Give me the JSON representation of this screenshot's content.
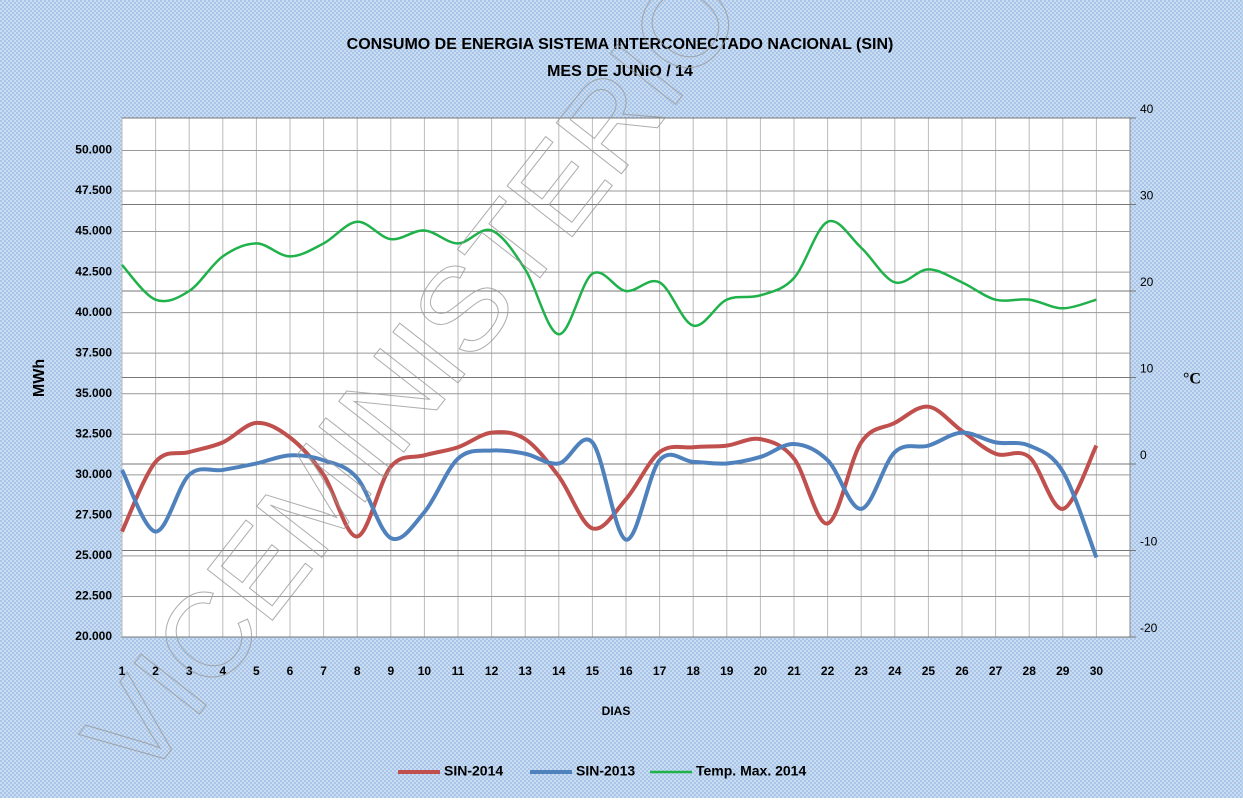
{
  "chart_data": {
    "type": "line",
    "title": "CONSUMO DE ENERGIA SISTEMA INTERCONECTADO NACIONAL (SIN)",
    "subtitle": "MES DE  JUNIO  / 14",
    "watermark": "VICEMINISTERIO",
    "x_label": "DIAS",
    "y_label": "MWh",
    "y2_label": "°C",
    "x": [
      1,
      2,
      3,
      4,
      5,
      6,
      7,
      8,
      9,
      10,
      11,
      12,
      13,
      14,
      15,
      16,
      17,
      18,
      19,
      20,
      21,
      22,
      23,
      24,
      25,
      26,
      27,
      28,
      29,
      30
    ],
    "xlim": [
      1,
      31
    ],
    "xticks": [
      1,
      2,
      3,
      4,
      5,
      6,
      7,
      8,
      9,
      10,
      11,
      12,
      13,
      14,
      15,
      16,
      17,
      18,
      19,
      20,
      21,
      22,
      23,
      24,
      25,
      26,
      27,
      28,
      29,
      30
    ],
    "ylim": [
      20000,
      52000
    ],
    "yticks": [
      {
        "value": 20000,
        "label": "20.000"
      },
      {
        "value": 22500,
        "label": "22.500"
      },
      {
        "value": 25000,
        "label": "25.000"
      },
      {
        "value": 27500,
        "label": "27.500"
      },
      {
        "value": 30000,
        "label": "30.000"
      },
      {
        "value": 32500,
        "label": "32.500"
      },
      {
        "value": 35000,
        "label": "35.000"
      },
      {
        "value": 37500,
        "label": "37.500"
      },
      {
        "value": 40000,
        "label": "40.000"
      },
      {
        "value": 42500,
        "label": "42.500"
      },
      {
        "value": 45000,
        "label": "45.000"
      },
      {
        "value": 47500,
        "label": "47.500"
      },
      {
        "value": 50000,
        "label": "50.000"
      }
    ],
    "y2lim": [
      -20,
      40
    ],
    "y2ticks": [
      -20,
      -10,
      0,
      10,
      20,
      30,
      40
    ],
    "grid": true,
    "legend": "bottom",
    "series": [
      {
        "name": "SIN-2014",
        "color": "#c0504d",
        "values": [
          26500,
          30800,
          31400,
          32000,
          33200,
          32300,
          30000,
          26200,
          30500,
          31200,
          31700,
          32600,
          32200,
          29900,
          26700,
          28500,
          31400,
          31700,
          31800,
          32200,
          31000,
          27000,
          32000,
          33200,
          34200,
          32700,
          31300,
          31100,
          27900,
          31800
        ]
      },
      {
        "name": "SIN-2013",
        "color": "#4f81bd",
        "values": [
          30300,
          26500,
          30000,
          30300,
          30700,
          31200,
          30900,
          29800,
          26100,
          27700,
          31000,
          31500,
          31300,
          30700,
          32000,
          26000,
          30900,
          30800,
          30700,
          31100,
          31900,
          30900,
          27900,
          31400,
          31800,
          32600,
          32000,
          31800,
          30200,
          24900
        ]
      },
      {
        "name": "Temp. Max. 2014",
        "color": "#1fb14a",
        "axis": "y2",
        "values": [
          23,
          19,
          20,
          24,
          25.5,
          24,
          25.5,
          28,
          26,
          27,
          25.5,
          27,
          22.5,
          15,
          22,
          20,
          21,
          16,
          19,
          19.5,
          21.5,
          28,
          25,
          21,
          22.5,
          21,
          19,
          19,
          18,
          19
        ]
      }
    ]
  }
}
